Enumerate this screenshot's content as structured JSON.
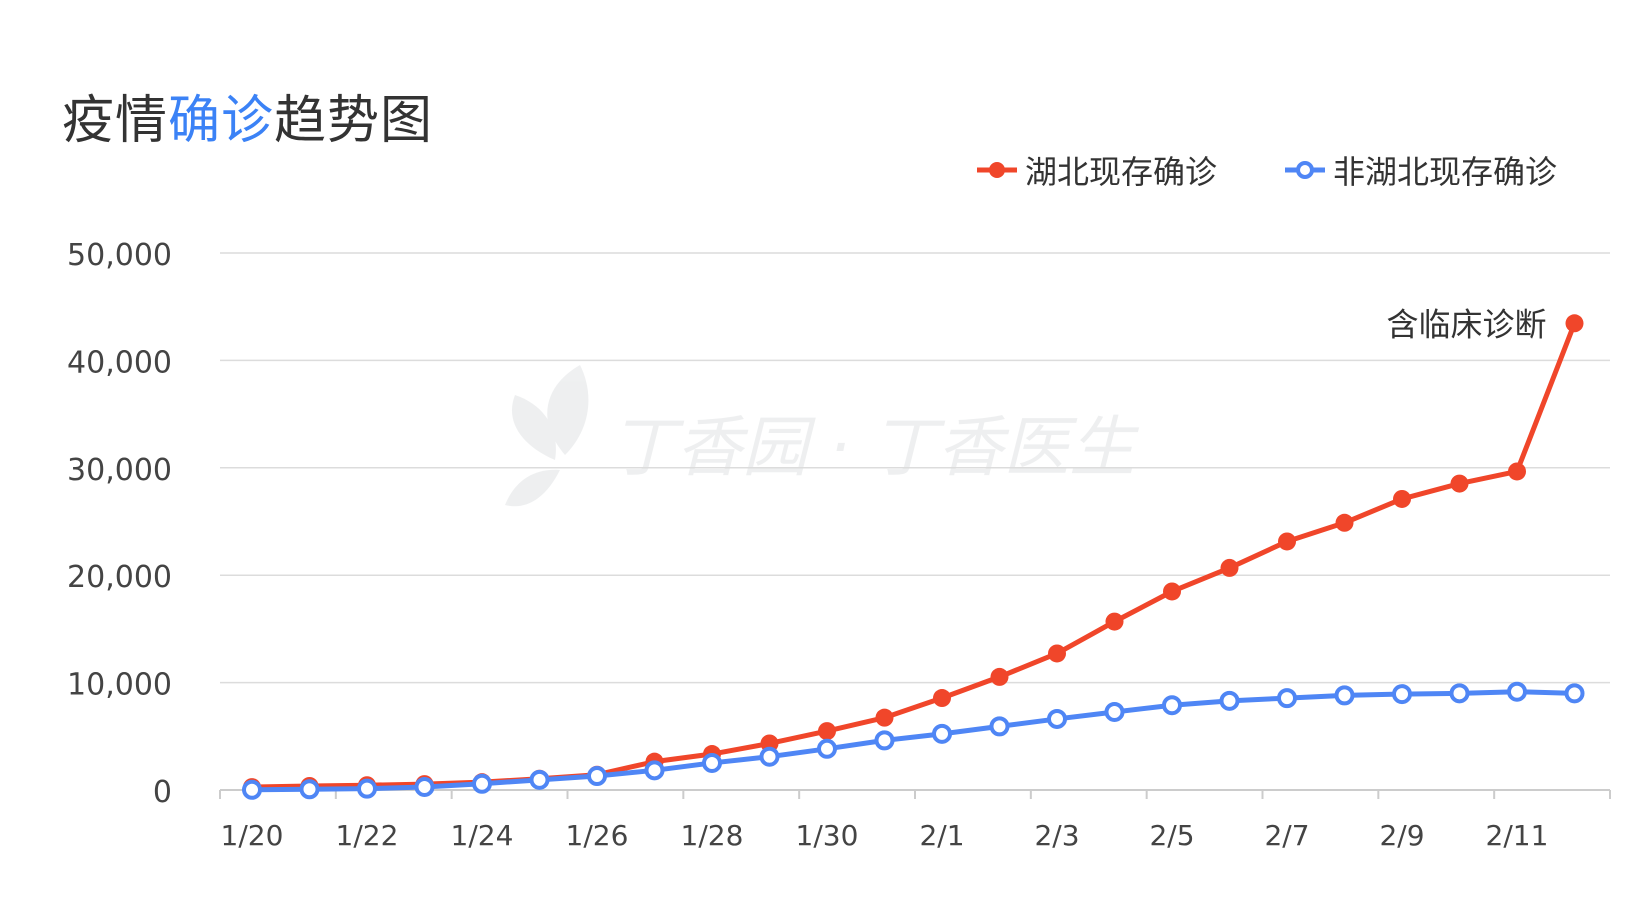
{
  "title": {
    "part1": "疫情",
    "accent": "确诊",
    "part2": "趋势图"
  },
  "watermark": "丁香园 · 丁香医生",
  "colors": {
    "hubei": "#f0462a",
    "other": "#4f86f5",
    "accent": "#3b82f6",
    "grid": "#dcdcdc",
    "text": "#444444"
  },
  "chart_data": {
    "type": "line",
    "x": [
      "1/20",
      "1/21",
      "1/22",
      "1/23",
      "1/24",
      "1/25",
      "1/26",
      "1/27",
      "1/28",
      "1/29",
      "1/30",
      "1/31",
      "2/1",
      "2/2",
      "2/3",
      "2/4",
      "2/5",
      "2/6",
      "2/7",
      "2/8",
      "2/9",
      "2/10",
      "2/11",
      "2/12"
    ],
    "x_tick_labels": [
      "1/20",
      "1/22",
      "1/24",
      "1/26",
      "1/28",
      "1/30",
      "2/1",
      "2/3",
      "2/5",
      "2/7",
      "2/9",
      "2/11"
    ],
    "y_tick_labels": [
      "0",
      "10,000",
      "20,000",
      "30,000",
      "40,000",
      "50,000"
    ],
    "ylim": [
      0,
      50000
    ],
    "grid": true,
    "legend_position": "top-right",
    "series": [
      {
        "name": "湖北现存确诊",
        "color": "#f0462a",
        "marker": "filled",
        "values": [
          270,
          375,
          444,
          549,
          729,
          1052,
          1423,
          2639,
          3349,
          4334,
          5486,
          6738,
          8565,
          10532,
          12712,
          15679,
          18483,
          20677,
          23139,
          24881,
          27100,
          28532,
          29659,
          43455
        ]
      },
      {
        "name": "非湖北现存确诊",
        "color": "#4f86f5",
        "marker": "hollow",
        "values": [
          21,
          65,
          127,
          281,
          579,
          946,
          1301,
          1833,
          2518,
          3101,
          3835,
          4621,
          5230,
          5924,
          6616,
          7264,
          7892,
          8302,
          8554,
          8810,
          8930,
          9002,
          9150,
          9000
        ]
      }
    ],
    "annotations": [
      {
        "text": "含临床诊断",
        "x": "2/12",
        "series": "湖北现存确诊"
      }
    ]
  }
}
